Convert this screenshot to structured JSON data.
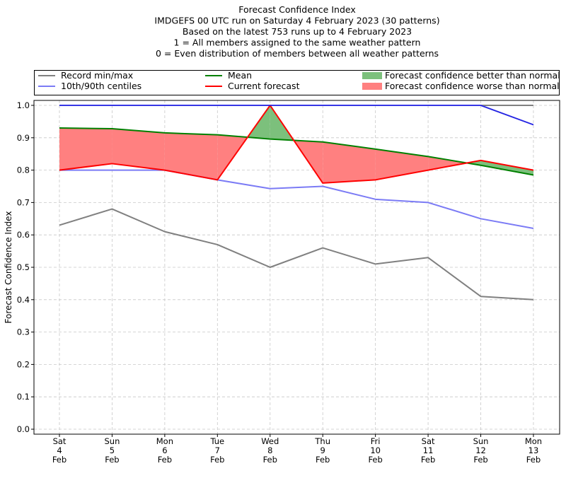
{
  "chart_data": {
    "type": "line",
    "title_lines": [
      "Forecast Confidence Index",
      "IMDGEFS 00 UTC run on Saturday 4 February 2023 (30 patterns)",
      "Based on the latest 753 runs up to 4 February 2023",
      "1 = All members assigned to the same weather pattern",
      "0 = Even distribution of members between all weather patterns"
    ],
    "ylabel": "Forecast Confidence Index",
    "xlabel": "",
    "ylim": [
      0,
      1
    ],
    "yticks": [
      "0.0",
      "0.1",
      "0.2",
      "0.3",
      "0.4",
      "0.5",
      "0.6",
      "0.7",
      "0.8",
      "0.9",
      "1.0"
    ],
    "categories": [
      [
        "Sat",
        "4",
        "Feb"
      ],
      [
        "Sun",
        "5",
        "Feb"
      ],
      [
        "Mon",
        "6",
        "Feb"
      ],
      [
        "Tue",
        "7",
        "Feb"
      ],
      [
        "Wed",
        "8",
        "Feb"
      ],
      [
        "Thu",
        "9",
        "Feb"
      ],
      [
        "Fri",
        "10",
        "Feb"
      ],
      [
        "Sat",
        "11",
        "Feb"
      ],
      [
        "Sun",
        "12",
        "Feb"
      ],
      [
        "Mon",
        "13",
        "Feb"
      ]
    ],
    "grid": true,
    "legend_placement": "top",
    "series": [
      {
        "key": "record_max",
        "color": "#808080",
        "values": [
          1.0,
          1.0,
          1.0,
          1.0,
          1.0,
          1.0,
          1.0,
          1.0,
          1.0,
          1.0
        ]
      },
      {
        "key": "record_min",
        "color": "#808080",
        "values": [
          0.63,
          0.68,
          0.61,
          0.57,
          0.5,
          0.56,
          0.51,
          0.53,
          0.41,
          0.4
        ]
      },
      {
        "key": "p90",
        "color": "#7b7bf5",
        "values": [
          1.0,
          1.0,
          1.0,
          1.0,
          1.0,
          1.0,
          1.0,
          1.0,
          1.0,
          0.94
        ]
      },
      {
        "key": "p10",
        "color": "#7b7bf5",
        "values": [
          0.8,
          0.8,
          0.8,
          0.77,
          0.743,
          0.75,
          0.71,
          0.7,
          0.65,
          0.62
        ]
      },
      {
        "key": "mean",
        "color": "#008000",
        "values": [
          0.93,
          0.928,
          0.915,
          0.909,
          0.896,
          0.887,
          0.865,
          0.842,
          0.815,
          0.785
        ]
      },
      {
        "key": "current",
        "color": "#ff0000",
        "values": [
          0.8,
          0.82,
          0.8,
          0.77,
          1.0,
          0.76,
          0.77,
          0.8,
          0.83,
          0.8
        ]
      }
    ],
    "fill_better_color": "#7cc07c",
    "fill_worse_color": "#ff8080",
    "legend": [
      {
        "label": "Record min/max",
        "color": "#808080",
        "kind": "line"
      },
      {
        "label": "10th/90th centiles",
        "color": "#7b7bf5",
        "kind": "line"
      },
      {
        "label": "Mean",
        "color": "#008000",
        "kind": "line"
      },
      {
        "label": "Current forecast",
        "color": "#ff0000",
        "kind": "line"
      },
      {
        "label": "Forecast confidence better than normal",
        "color": "#7cc07c",
        "kind": "patch"
      },
      {
        "label": "Forecast confidence worse than normal",
        "color": "#ff8080",
        "kind": "patch"
      }
    ]
  }
}
